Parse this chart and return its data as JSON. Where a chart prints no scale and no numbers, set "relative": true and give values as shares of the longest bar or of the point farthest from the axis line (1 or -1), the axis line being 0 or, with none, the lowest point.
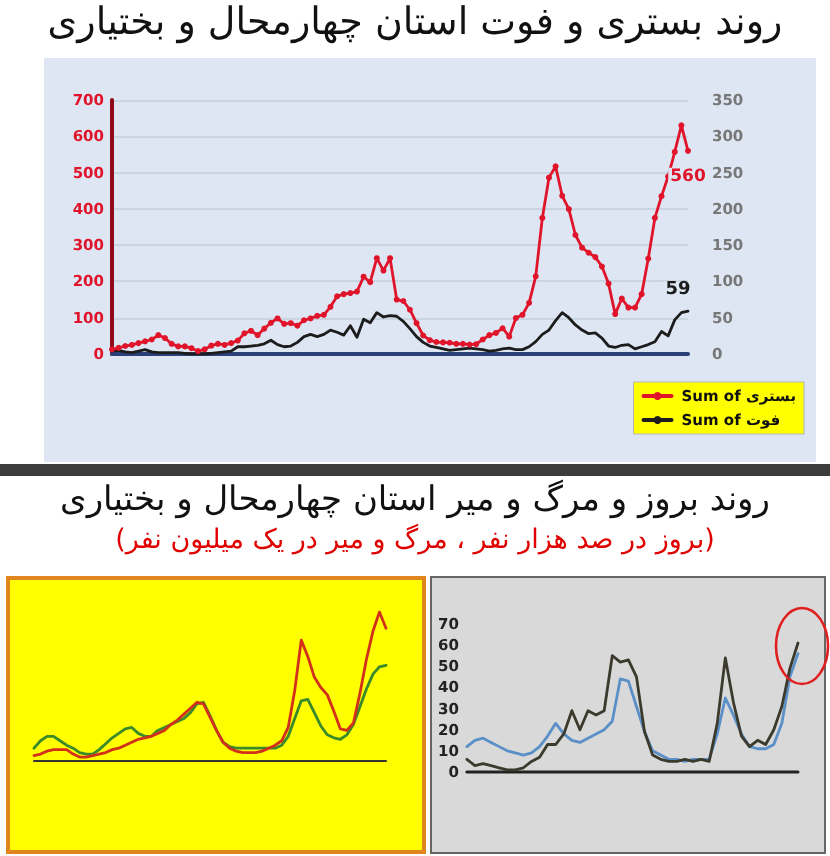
{
  "chart_data": [
    {
      "type": "line",
      "title": "روند بستری و فوت استان چهارمحال و بختیاری",
      "categories": [
        null,
        null,
        null,
        null,
        null,
        null,
        null,
        null,
        null,
        null,
        null,
        null,
        null,
        null,
        null,
        null,
        null,
        null,
        null,
        null,
        null,
        null,
        null,
        null,
        null,
        null,
        null,
        null,
        null,
        null,
        null,
        null,
        null,
        null,
        null,
        null,
        null,
        null,
        null,
        null,
        null,
        null,
        null,
        null,
        null,
        null,
        null,
        null,
        null,
        null,
        null,
        null,
        null,
        null,
        null,
        null,
        null,
        null,
        null,
        null,
        null,
        null,
        null,
        null,
        null,
        null,
        null,
        null,
        null,
        null,
        null,
        null,
        null,
        null,
        null,
        null,
        null,
        null,
        null,
        null,
        null,
        null,
        null,
        null,
        null,
        null,
        null,
        null
      ],
      "series": [
        {
          "name": "Sum of بستری",
          "color": "#e0142a",
          "marker": "circle",
          "values": [
            13,
            17,
            22,
            25,
            30,
            35,
            40,
            52,
            44,
            28,
            21,
            21,
            16,
            8,
            13,
            23,
            28,
            25,
            30,
            37,
            57,
            64,
            52,
            70,
            86,
            98,
            83,
            85,
            78,
            93,
            98,
            105,
            108,
            130,
            159,
            165,
            168,
            172,
            213,
            198,
            264,
            230,
            264,
            150,
            146,
            122,
            85,
            51,
            38,
            33,
            32,
            31,
            28,
            28,
            26,
            27,
            40,
            52,
            58,
            71,
            48,
            99,
            108,
            141,
            214,
            375,
            486,
            517,
            436,
            399,
            328,
            293,
            279,
            267,
            241,
            194,
            110,
            153,
            128,
            128,
            165,
            263,
            375,
            435,
            489,
            557,
            630,
            560
          ],
          "value_labels": [
            null,
            null,
            null,
            null,
            null,
            null,
            null,
            null,
            null,
            null,
            null,
            null,
            null,
            null,
            null,
            null,
            null,
            null,
            null,
            null,
            null,
            null,
            null,
            null,
            null,
            null,
            null,
            null,
            null,
            null,
            null,
            null,
            null,
            null,
            null,
            null,
            null,
            null,
            null,
            null,
            null,
            null,
            null,
            null,
            null,
            null,
            null,
            null,
            null,
            null,
            null,
            null,
            null,
            null,
            null,
            null,
            null,
            null,
            null,
            null,
            null,
            null,
            null,
            null,
            null,
            null,
            null,
            null,
            null,
            null,
            null,
            null,
            null,
            null,
            null,
            null,
            null,
            null,
            null,
            null,
            null,
            null,
            null,
            null,
            null,
            null,
            null,
            "560"
          ]
        },
        {
          "name": "Sum of فوت",
          "color": "#1c1c1c",
          "axis": "y2",
          "marker": "none",
          "values": [
            4,
            5,
            3,
            2,
            4,
            6,
            3,
            2,
            2,
            2,
            2,
            1,
            0,
            0,
            0,
            1,
            2,
            3,
            4,
            10,
            10,
            11,
            12,
            14,
            19,
            13,
            10,
            11,
            16,
            24,
            27,
            24,
            27,
            33,
            30,
            26,
            39,
            23,
            48,
            43,
            57,
            51,
            53,
            52,
            45,
            35,
            24,
            16,
            11,
            9,
            7,
            5,
            6,
            7,
            8,
            7,
            6,
            4,
            5,
            7,
            8,
            6,
            6,
            10,
            17,
            27,
            33,
            46,
            57,
            50,
            40,
            33,
            28,
            29,
            22,
            11,
            9,
            12,
            13,
            7,
            10,
            13,
            17,
            31,
            25,
            47,
            57,
            59
          ],
          "value_labels": [
            null,
            null,
            null,
            null,
            null,
            null,
            null,
            null,
            null,
            null,
            null,
            null,
            null,
            null,
            null,
            null,
            null,
            null,
            null,
            null,
            null,
            null,
            null,
            null,
            null,
            null,
            null,
            null,
            null,
            null,
            null,
            null,
            null,
            null,
            null,
            null,
            null,
            null,
            null,
            null,
            null,
            null,
            null,
            null,
            null,
            null,
            null,
            null,
            null,
            null,
            null,
            null,
            null,
            null,
            null,
            null,
            null,
            null,
            null,
            null,
            null,
            null,
            null,
            null,
            null,
            null,
            null,
            null,
            null,
            null,
            null,
            null,
            null,
            null,
            null,
            null,
            null,
            null,
            null,
            null,
            null,
            null,
            null,
            null,
            null,
            null,
            null,
            "59"
          ]
        }
      ],
      "ylim": [
        0,
        700
      ],
      "yticks": [
        0,
        100,
        200,
        300,
        400,
        500,
        600,
        700
      ],
      "y2lim": [
        0,
        350
      ],
      "y2ticks": [
        0,
        50,
        100,
        150,
        200,
        250,
        300,
        350
      ],
      "grid": "y",
      "legend": "bottom right"
    },
    {
      "type": "line",
      "title": "روند بروز و مرگ و میر استان چهارمحال و بختیاری",
      "subtitle": "(بروز در صد هزار نفر ، مرگ و میر در یک میلیون نفر)",
      "relative": true,
      "categories": [
        null,
        null,
        null,
        null,
        null,
        null,
        null,
        null,
        null,
        null,
        null,
        null,
        null,
        null,
        null,
        null,
        null,
        null,
        null,
        null,
        null,
        null,
        null,
        null,
        null,
        null,
        null,
        null,
        null,
        null,
        null,
        null,
        null,
        null,
        null,
        null,
        null,
        null,
        null,
        null,
        null,
        null,
        null,
        null,
        null,
        null,
        null,
        null,
        null,
        null,
        null,
        null,
        null,
        null,
        null
      ],
      "series": [
        {
          "color": "#d2301a",
          "values": [
            0.03,
            0.04,
            0.06,
            0.07,
            0.07,
            0.07,
            0.04,
            0.02,
            0.02,
            0.03,
            0.04,
            0.05,
            0.07,
            0.08,
            0.1,
            0.12,
            0.14,
            0.15,
            0.16,
            0.18,
            0.2,
            0.24,
            0.27,
            0.31,
            0.35,
            0.39,
            0.38,
            0.29,
            0.2,
            0.12,
            0.08,
            0.06,
            0.05,
            0.05,
            0.05,
            0.06,
            0.08,
            0.1,
            0.13,
            0.22,
            0.47,
            0.81,
            0.7,
            0.56,
            0.49,
            0.44,
            0.33,
            0.21,
            0.2,
            0.25,
            0.45,
            0.68,
            0.87,
            1,
            0.89
          ]
        },
        {
          "color": "#3a8a2a",
          "values": [
            0.08,
            0.13,
            0.16,
            0.16,
            0.13,
            0.1,
            0.08,
            0.05,
            0.04,
            0.04,
            0.07,
            0.11,
            0.15,
            0.18,
            0.21,
            0.22,
            0.18,
            0.16,
            0.16,
            0.2,
            0.22,
            0.24,
            0.26,
            0.28,
            0.32,
            0.38,
            0.39,
            0.3,
            0.2,
            0.12,
            0.09,
            0.08,
            0.08,
            0.08,
            0.08,
            0.08,
            0.08,
            0.08,
            0.1,
            0.16,
            0.28,
            0.4,
            0.41,
            0.32,
            0.23,
            0.17,
            0.15,
            0.14,
            0.17,
            0.24,
            0.36,
            0.48,
            0.58,
            0.63,
            0.64
          ]
        }
      ]
    },
    {
      "type": "line",
      "categories": [
        null,
        null,
        null,
        null,
        null,
        null,
        null,
        null,
        null,
        null,
        null,
        null,
        null,
        null,
        null,
        null,
        null,
        null,
        null,
        null,
        null,
        null,
        null,
        null,
        null,
        null,
        null,
        null,
        null,
        null,
        null,
        null,
        null,
        null,
        null,
        null,
        null,
        null,
        null,
        null,
        null,
        null
      ],
      "series": [
        {
          "color": "#3b3a2c",
          "values": [
            6,
            3,
            4,
            3,
            2,
            1,
            1,
            2,
            5,
            7,
            13,
            13,
            18,
            29,
            20,
            29,
            27,
            29,
            55,
            52,
            53,
            45,
            19,
            8,
            6,
            5,
            5,
            6,
            5,
            6,
            5,
            23,
            54,
            33,
            17,
            12,
            15,
            13,
            20,
            31,
            49,
            61
          ]
        },
        {
          "color": "#5a8fc8",
          "values": [
            12,
            15,
            16,
            14,
            12,
            10,
            9,
            8,
            9,
            12,
            17,
            23,
            18,
            15,
            14,
            16,
            18,
            20,
            24,
            44,
            43,
            31,
            19,
            10,
            8,
            6,
            6,
            5,
            6,
            6,
            6,
            18,
            35,
            27,
            18,
            12,
            11,
            11,
            13,
            23,
            45,
            56
          ]
        }
      ],
      "ylim": [
        0,
        70
      ],
      "yticks": [
        0,
        10,
        20,
        30,
        40,
        50,
        60,
        70
      ]
    }
  ]
}
